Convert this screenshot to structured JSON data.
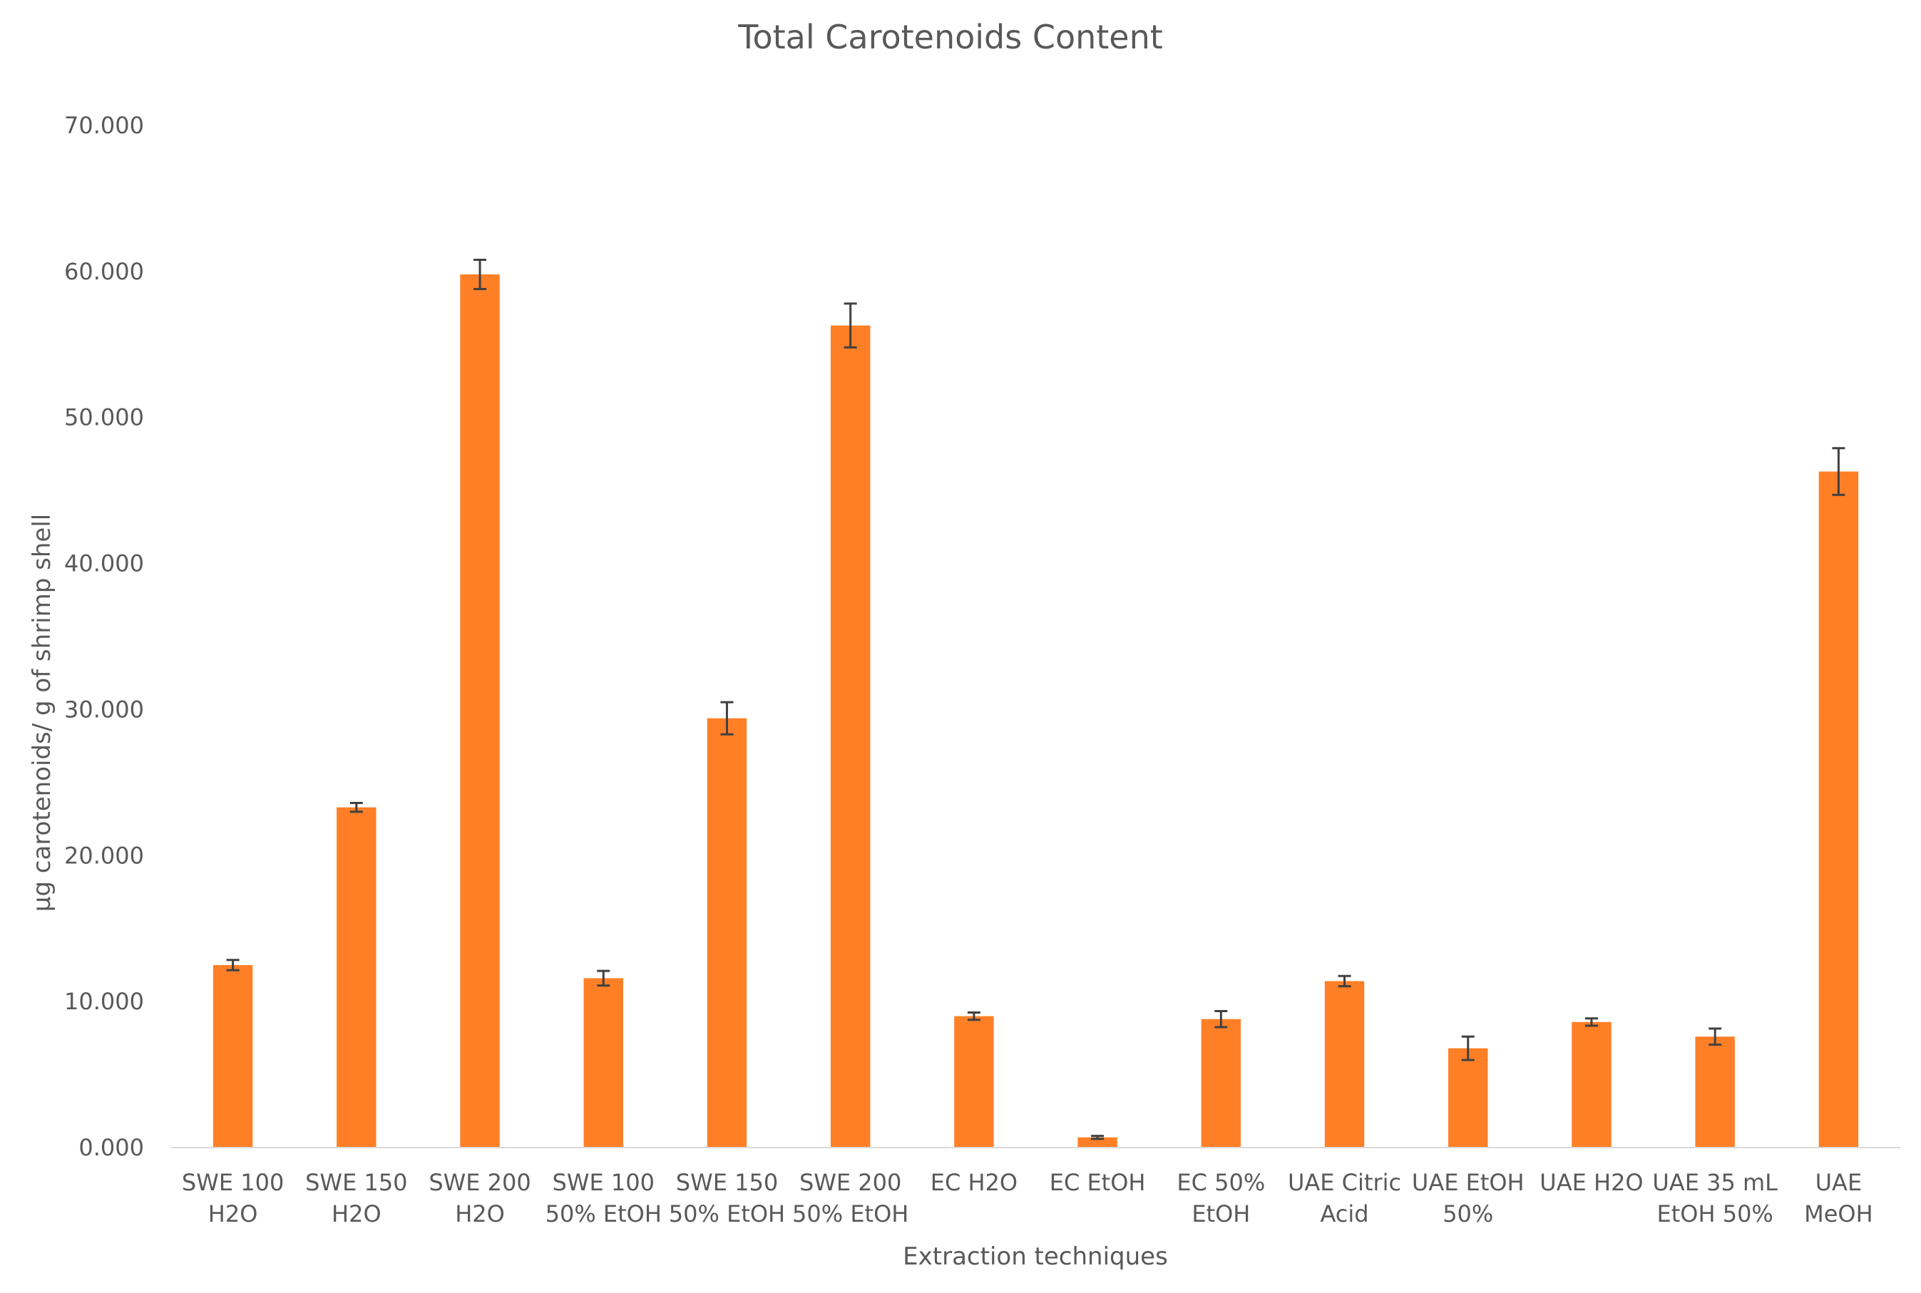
{
  "chart_data": {
    "type": "bar",
    "title": "Total Carotenoids Content",
    "xlabel": "Extraction techniques",
    "ylabel": "µg carotenoids/ g of shrimp shell",
    "ylim": [
      0,
      70
    ],
    "yticks": [
      0,
      10,
      20,
      30,
      40,
      50,
      60,
      70
    ],
    "ytick_labels": [
      "0.000",
      "10.000",
      "20.000",
      "30.000",
      "40.000",
      "50.000",
      "60.000",
      "70.000"
    ],
    "grid": false,
    "legend": "none",
    "categories": [
      [
        "SWE 100",
        "H2O"
      ],
      [
        "SWE 150",
        "H2O"
      ],
      [
        "SWE 200",
        "H2O"
      ],
      [
        "SWE 100",
        "50% EtOH"
      ],
      [
        "SWE 150",
        "50% EtOH"
      ],
      [
        "SWE 200",
        "50% EtOH"
      ],
      [
        "EC H2O"
      ],
      [
        "EC EtOH"
      ],
      [
        "EC 50%",
        "EtOH"
      ],
      [
        "UAE Citric",
        "Acid"
      ],
      [
        "UAE EtOH",
        "50%"
      ],
      [
        "UAE H2O"
      ],
      [
        "UAE 35 mL",
        "EtOH 50%"
      ],
      [
        "UAE",
        "MeOH"
      ]
    ],
    "values": [
      12.5,
      23.3,
      59.8,
      11.6,
      29.4,
      56.3,
      9.0,
      0.7,
      8.8,
      11.4,
      6.8,
      8.6,
      7.6,
      46.3
    ],
    "errors": [
      0.35,
      0.3,
      1.0,
      0.5,
      1.1,
      1.5,
      0.25,
      0.1,
      0.55,
      0.35,
      0.8,
      0.25,
      0.55,
      1.6
    ],
    "bar_color": "#FF7F27",
    "errorbar_color": "#404040"
  }
}
